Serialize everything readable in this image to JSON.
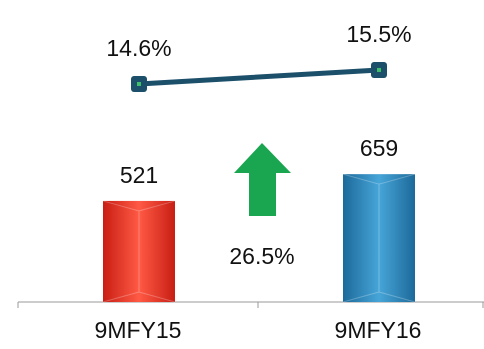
{
  "chart_data": {
    "type": "bar",
    "categories": [
      "9MFY15",
      "9MFY16"
    ],
    "series": [
      {
        "values": [
          521,
          659
        ],
        "colors": [
          "#e8372a",
          "#2f86bc"
        ]
      }
    ],
    "line_series": [
      {
        "values": [
          14.6,
          15.5
        ],
        "value_labels": [
          "14.6%",
          "15.5%"
        ],
        "color": "#1c4f6a"
      }
    ],
    "annotation": {
      "text": "26.5%",
      "arrow": "up",
      "color": "#1aa650"
    },
    "ylim": [
      0,
      750
    ],
    "grid": false,
    "legend": "none"
  }
}
